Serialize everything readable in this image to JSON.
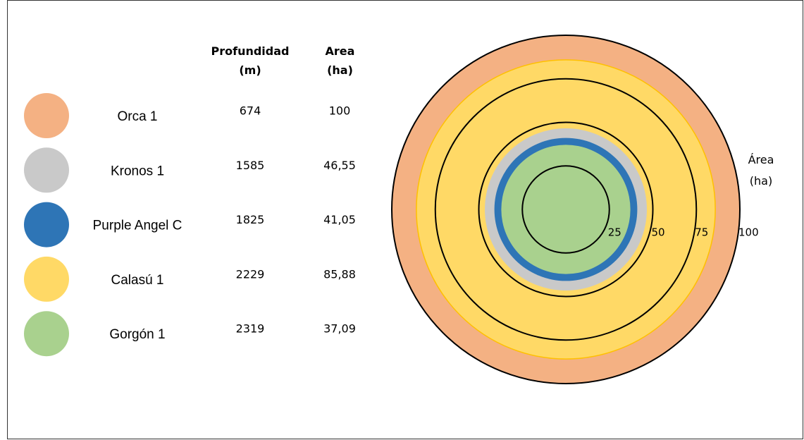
{
  "chart_data": {
    "type": "concentric",
    "columns": [
      "Profundidad (m)",
      "Area (ha)"
    ],
    "axis_label": "Área (ha)",
    "series": [
      {
        "name": "Orca 1",
        "color": "#f4b183",
        "depth": 674,
        "value": 100
      },
      {
        "name": "Kronos 1",
        "color": "#c9c9c9",
        "depth": 1585,
        "value": 46.55,
        "value_label": "46,55"
      },
      {
        "name": "Purple Angel C",
        "color": "#2e75b6",
        "depth": 1825,
        "value": 41.05,
        "value_label": "41,05"
      },
      {
        "name": "Calasú 1",
        "color": "#ffd966",
        "depth": 2229,
        "value": 85.88,
        "value_label": "85,88"
      },
      {
        "name": "Gorgón 1",
        "color": "#a9d18e",
        "depth": 2319,
        "value": 37.09,
        "value_label": "37,09"
      }
    ],
    "rlim": [
      0,
      100
    ],
    "rticks": [
      25,
      50,
      75,
      100
    ]
  }
}
